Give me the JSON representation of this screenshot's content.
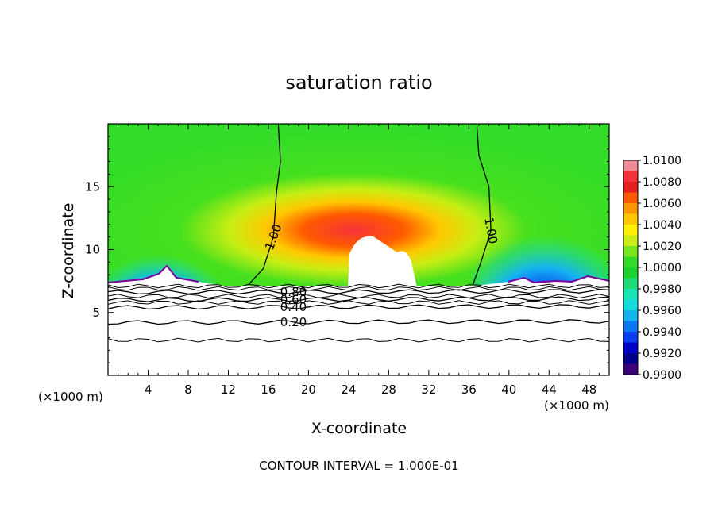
{
  "chart_data": {
    "type": "heatmap",
    "title": "saturation ratio",
    "xlabel": "X-coordinate",
    "ylabel": "Z-coordinate",
    "x_unit": "(×1000 m)",
    "y_unit": "(×1000 m)",
    "xlim": [
      0,
      50
    ],
    "ylim": [
      0,
      20
    ],
    "x_ticks": [
      4,
      8,
      12,
      16,
      20,
      24,
      28,
      32,
      36,
      40,
      44,
      48
    ],
    "y_ticks": [
      5,
      10,
      15
    ],
    "colorbar": {
      "min": 0.99,
      "max": 1.01,
      "labels": [
        "1.0100",
        "1.0080",
        "1.0060",
        "1.0040",
        "1.0020",
        "1.0000",
        "0.9980",
        "0.9960",
        "0.9940",
        "0.9920",
        "0.9900"
      ],
      "colors": [
        "#f08a96",
        "#f5323a",
        "#e61e1e",
        "#ff5a00",
        "#ff9600",
        "#ffc800",
        "#fff000",
        "#c8ee14",
        "#78e61e",
        "#32dc28",
        "#1ed232",
        "#1edc78",
        "#19e6b4",
        "#14dcdc",
        "#14b4f0",
        "#0a78f0",
        "#0a3cf0",
        "#0000c8",
        "#00008c",
        "#3c0078"
      ]
    },
    "contours": [
      {
        "label": "1.00",
        "x": [
          17.0,
          17.2,
          16.8,
          16.5,
          15.5,
          14.0
        ],
        "z": [
          19.8,
          17.0,
          14.5,
          11.0,
          8.5,
          7.2
        ]
      },
      {
        "label": "1.00",
        "x": [
          36.8,
          37.0,
          38.0,
          38.2,
          37.2,
          36.4
        ],
        "z": [
          19.8,
          17.5,
          15.0,
          11.5,
          9.0,
          7.2
        ]
      },
      {
        "label": "0.20",
        "x": [
          0,
          50
        ],
        "z": [
          4.2,
          4.3
        ]
      },
      {
        "label": "0.40",
        "x": [
          0,
          50
        ],
        "z": [
          5.4,
          5.5
        ]
      },
      {
        "label": "0.60",
        "x": [
          0,
          50
        ],
        "z": [
          6.0,
          6.1
        ]
      },
      {
        "label": "0.80",
        "x": [
          0,
          50
        ],
        "z": [
          6.6,
          6.7
        ]
      }
    ],
    "unlabeled_contour_levels_z": [
      2.8,
      5.8,
      6.3,
      6.9,
      7.1
    ],
    "annotation": "CONTOUR INTERVAL = 1.000E-01"
  }
}
